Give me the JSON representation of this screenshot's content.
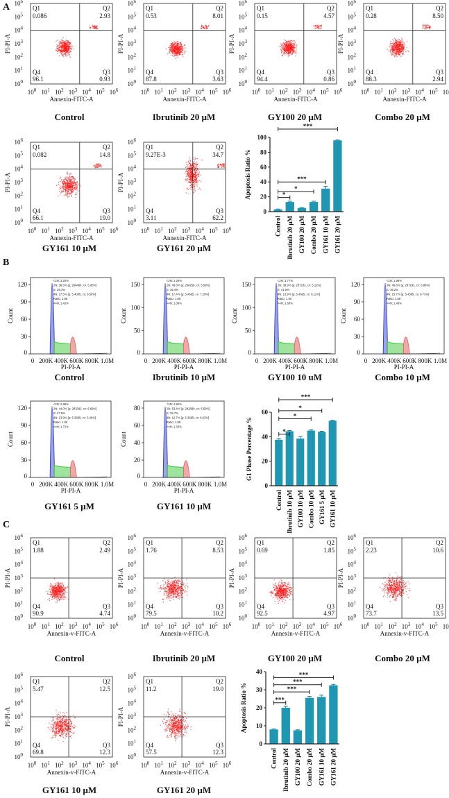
{
  "colors": {
    "bar": "#1f97b3",
    "dots": "#ff1a1a",
    "g1": "#3b3bd1",
    "s_phase": "#33cc33",
    "g2": "#e07070"
  },
  "panels": {
    "A": {
      "label": "A",
      "xlabel": "Annexin-FITC-A",
      "ylabel": "PI-PI-A",
      "log_ticks": [
        "0",
        "1",
        "2",
        "3",
        "4",
        "5",
        "6"
      ],
      "plots": [
        {
          "title": "Control",
          "Q1": "0.086",
          "Q2": "2.93",
          "Q3": "0.93",
          "Q4": "96.1"
        },
        {
          "title": "Ibrutinib 20 µM",
          "Q1": "0.53",
          "Q2": "8.01",
          "Q3": "3.63",
          "Q4": "87.8"
        },
        {
          "title": "GY100 20 µM",
          "Q1": "0.15",
          "Q2": "4.57",
          "Q3": "0.86",
          "Q4": "94.4"
        },
        {
          "title": "Combo 20 µM",
          "Q1": "0.28",
          "Q2": "8.50",
          "Q3": "2.94",
          "Q4": "88.3"
        },
        {
          "title": "GY161 10 µM",
          "Q1": "0.082",
          "Q2": "14.8",
          "Q3": "19.0",
          "Q4": "66.1"
        },
        {
          "title": "GY161 20 µM",
          "Q1": "9.27E-3",
          "Q2": "34.7",
          "Q3": "62.2",
          "Q4": "3.11"
        }
      ]
    },
    "B": {
      "label": "B",
      "xlabel": "PI-PI-A",
      "ylabel": "Count",
      "x_ticks": [
        "0",
        "200K",
        "400K",
        "600K",
        "800K",
        "1.0M"
      ],
      "plots": [
        {
          "title": "Control",
          "y_ticks": [
            "0",
            "30",
            "60",
            "90",
            "120"
          ],
          "stats": [
            "<2N: 3.20%",
            "2N: 36.5%  [µ: 286464, cv: 5.00%]",
            "S: 39.3%",
            "4N: 17.5%  [µ: 5.4065, cv: 6.50%]",
            "Ratio: 1.89",
            ">4N: 1.42%"
          ]
        },
        {
          "title": "Ibrutinib 10 µM",
          "y_ticks": [
            "0",
            "50",
            "100",
            "150"
          ],
          "stats": [
            "<2N: 2.26%",
            "2N: 43.6%  [µ: 288258, cv: 6.59%]",
            "S: 35.4%",
            "4N: 17.4%  [µ: 5.4665, cv: 7.29%]",
            "Ratio: 1.89",
            ">4N: 1.06%"
          ]
        },
        {
          "title": "GY100 10 uM",
          "y_ticks": [
            "0",
            "50",
            "100",
            "150"
          ],
          "stats": [
            "<2N: 3.77%",
            "2N: 39.9%  [µ: 287232, cv: 5.12%]",
            "S: 41.0%",
            "4N: 13.9%  [µ: 5.4665, cv: 6.11%]",
            "Ratio: 1.90",
            ">4N: 1.60%"
          ]
        },
        {
          "title": "Combo 10 µM",
          "y_ticks": [
            "0",
            "30",
            "60",
            "90",
            "120"
          ],
          "stats": [
            "<2N: 1.96%",
            "2N: 45.6%  [µ: 287232, cv: 6.86%]",
            "S: 35.2%",
            "4N: 15.7%  [µ: 5.4385, cv: 6.73%]",
            "Ratio: 1.89",
            ">4N: 1.46%"
          ]
        },
        {
          "title": "GY161 5 µM",
          "y_ticks": [
            "0",
            "30",
            "60",
            "90",
            "120"
          ],
          "stats": [
            "<2N: 2.86%",
            "2N: 44.0%  [µ: 283392, cv: 5.69%]",
            "S: 37.5%",
            "4N: 13.9%  [µ: 5.3885, cv: 5.46%]",
            "Ratio: 1.90",
            ">4N: 1.71%"
          ]
        },
        {
          "title": "GY161 10 µM",
          "y_ticks": [
            "0",
            "20",
            "40",
            "60",
            "80"
          ],
          "stats": [
            "<2N: 2.92%",
            "2N: 53.4%  [µ: 282880, cv: 6.59%]",
            "S: 29.7%",
            "4N: 12.7%  [µ: 5.3685, cv: 6.63%]",
            "Ratio: 1.89",
            ">4N: 1.33%"
          ]
        }
      ]
    },
    "C": {
      "label": "C",
      "xlabel": "Annexin-v-FITC-A",
      "ylabel": "PI-PI-A",
      "log_ticks": [
        "0",
        "1",
        "2",
        "3",
        "4",
        "5",
        "6"
      ],
      "plots": [
        {
          "title": "Control",
          "Q1": "1.88",
          "Q2": "2.49",
          "Q3": "4.74",
          "Q4": "90.9"
        },
        {
          "title": "Ibrutinib 20 µM",
          "Q1": "1.76",
          "Q2": "8.53",
          "Q3": "10.2",
          "Q4": "79.5"
        },
        {
          "title": "GY100 20 µM",
          "Q1": "0.69",
          "Q2": "1.85",
          "Q3": "4.97",
          "Q4": "92.5"
        },
        {
          "title": "Combo 20 µM",
          "Q1": "2.23",
          "Q2": "10.6",
          "Q3": "13.5",
          "Q4": "73.7"
        },
        {
          "title": "GY161 10 µM",
          "Q1": "5.47",
          "Q2": "12.5",
          "Q3": "12.3",
          "Q4": "69.8"
        },
        {
          "title": "GY161 20 µM",
          "Q1": "11.2",
          "Q2": "19.0",
          "Q3": "12.3",
          "Q4": "57.5"
        }
      ]
    }
  },
  "chart_data": [
    {
      "type": "bar",
      "ylabel": "Apoptosis Ratio %",
      "ylim": [
        0,
        100
      ],
      "y_ticks": [
        "0",
        "20",
        "40",
        "60",
        "80",
        "100"
      ],
      "categories": [
        "Control",
        "Ibrutinib 20 µM",
        "GY100 20 µM",
        "Combo 20 µM",
        "GY161 10 µM",
        "GY161 20 µM"
      ],
      "values": [
        3,
        13,
        5,
        13,
        31,
        96
      ],
      "errors": [
        0.5,
        1,
        0.5,
        1,
        3,
        0.5
      ],
      "significance": [
        {
          "from": 0,
          "to": 1,
          "label": "*"
        },
        {
          "from": 0,
          "to": 3,
          "label": "*"
        },
        {
          "from": 0,
          "to": 4,
          "label": "***"
        },
        {
          "from": 0,
          "to": 5,
          "label": "***"
        }
      ]
    },
    {
      "type": "bar",
      "ylabel": "G1 Phase Percentage %",
      "ylim": [
        0,
        60
      ],
      "y_ticks": [
        "0",
        "20",
        "40",
        "60"
      ],
      "categories": [
        "Control",
        "Ibrutinib 10 µM",
        "GY100 10 µM",
        "Combo 10 µM",
        "GY161 5 µM",
        "GY161 10 µM"
      ],
      "values": [
        37.5,
        44.5,
        38.5,
        45,
        44,
        53
      ],
      "errors": [
        1,
        0.5,
        1.5,
        0.7,
        0.4,
        0.5
      ],
      "significance": [
        {
          "from": 0,
          "to": 1,
          "label": "*"
        },
        {
          "from": 0,
          "to": 3,
          "label": "*"
        },
        {
          "from": 0,
          "to": 4,
          "label": "*"
        },
        {
          "from": 0,
          "to": 5,
          "label": "***"
        }
      ]
    },
    {
      "type": "bar",
      "ylabel": "Apoptosis Ratio %",
      "ylim": [
        0,
        40
      ],
      "y_ticks": [
        "0",
        "10",
        "20",
        "30",
        "40"
      ],
      "categories": [
        "Control",
        "Ibrutinib 20 µM",
        "GY100 20 µM",
        "Combo 20 µM",
        "GY161 10 µM",
        "GY161 20 µM"
      ],
      "values": [
        8,
        20,
        7.5,
        25.5,
        26,
        32.5
      ],
      "errors": [
        0.3,
        0.8,
        0.3,
        0.8,
        1,
        0.5
      ],
      "significance": [
        {
          "from": 0,
          "to": 1,
          "label": "***"
        },
        {
          "from": 0,
          "to": 3,
          "label": "***"
        },
        {
          "from": 0,
          "to": 4,
          "label": "***"
        },
        {
          "from": 0,
          "to": 5,
          "label": "***"
        }
      ]
    }
  ]
}
